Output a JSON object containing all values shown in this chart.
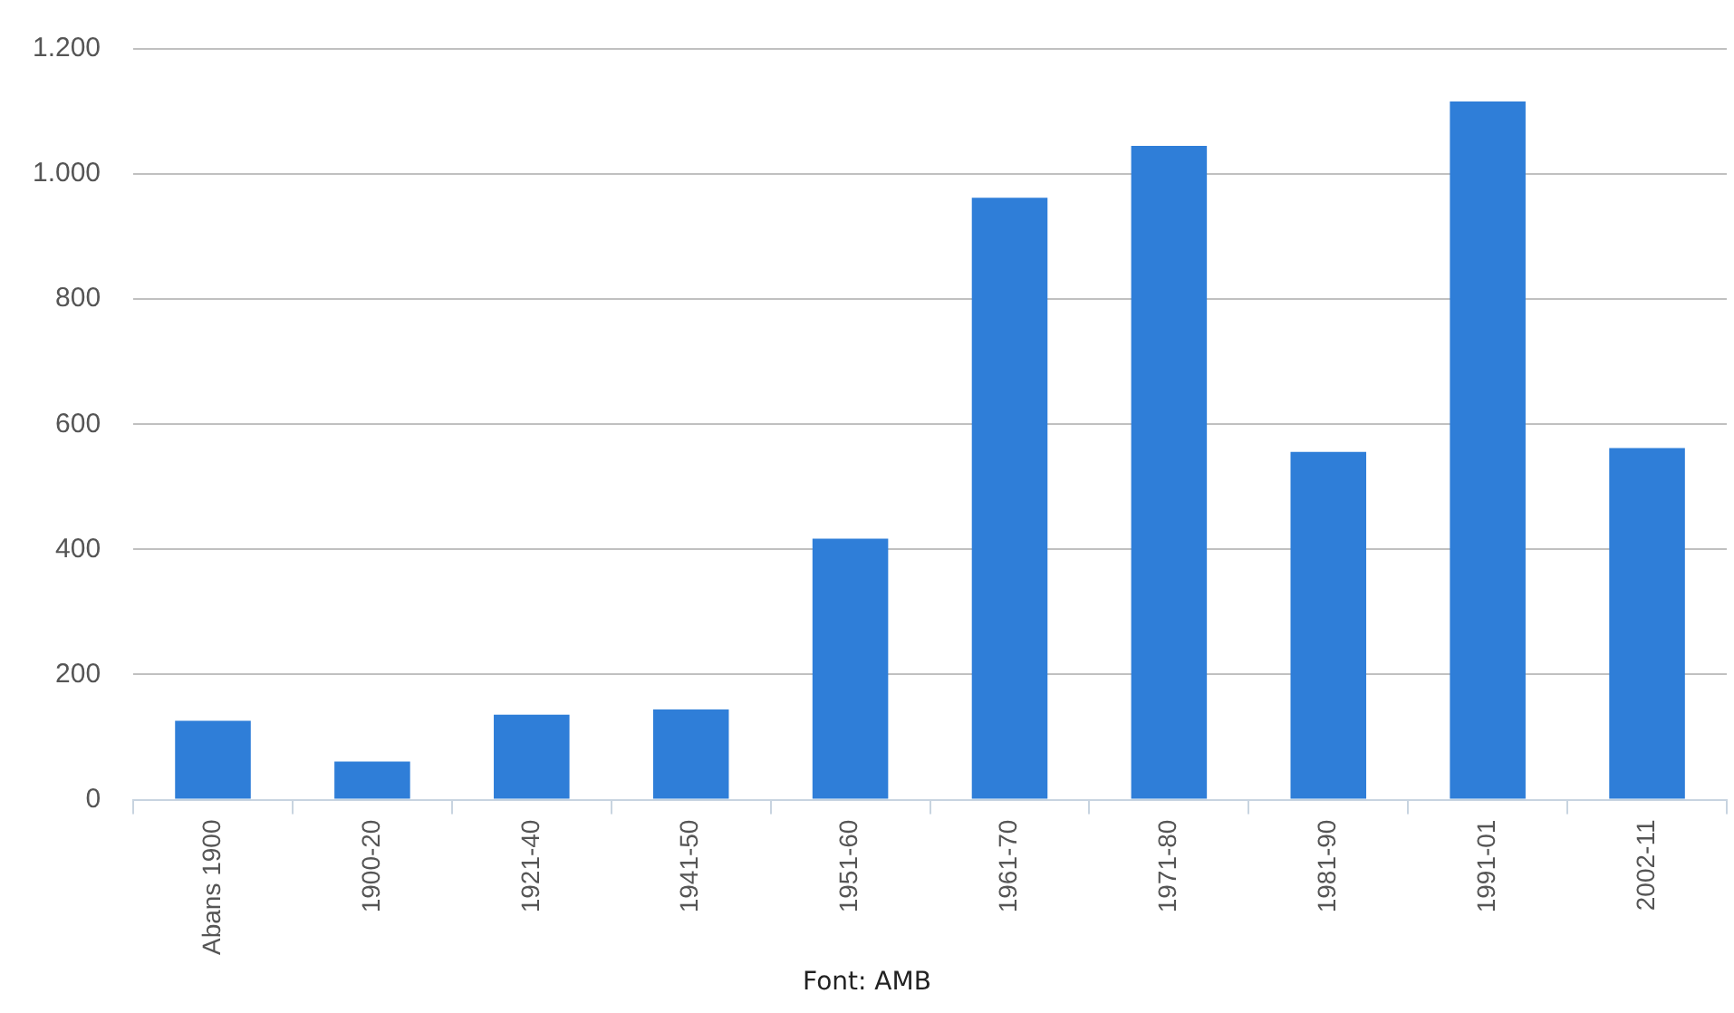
{
  "chart_data": {
    "type": "bar",
    "categories": [
      "Abans 1900",
      "1900-20",
      "1921-40",
      "1941-50",
      "1951-60",
      "1961-70",
      "1971-80",
      "1981-90",
      "1991-01",
      "2002-11"
    ],
    "values": [
      126,
      61,
      136,
      144,
      417,
      962,
      1045,
      556,
      1116,
      562
    ],
    "color": "#2f7ed8",
    "ylim": [
      0,
      1200
    ],
    "yticks": [
      0,
      200,
      400,
      600,
      800,
      {
        "value": 1000,
        "label": "1.000"
      },
      {
        "value": 1200,
        "label": "1.200"
      }
    ],
    "grid": "y",
    "annotations": [
      "Font: AMB"
    ]
  }
}
